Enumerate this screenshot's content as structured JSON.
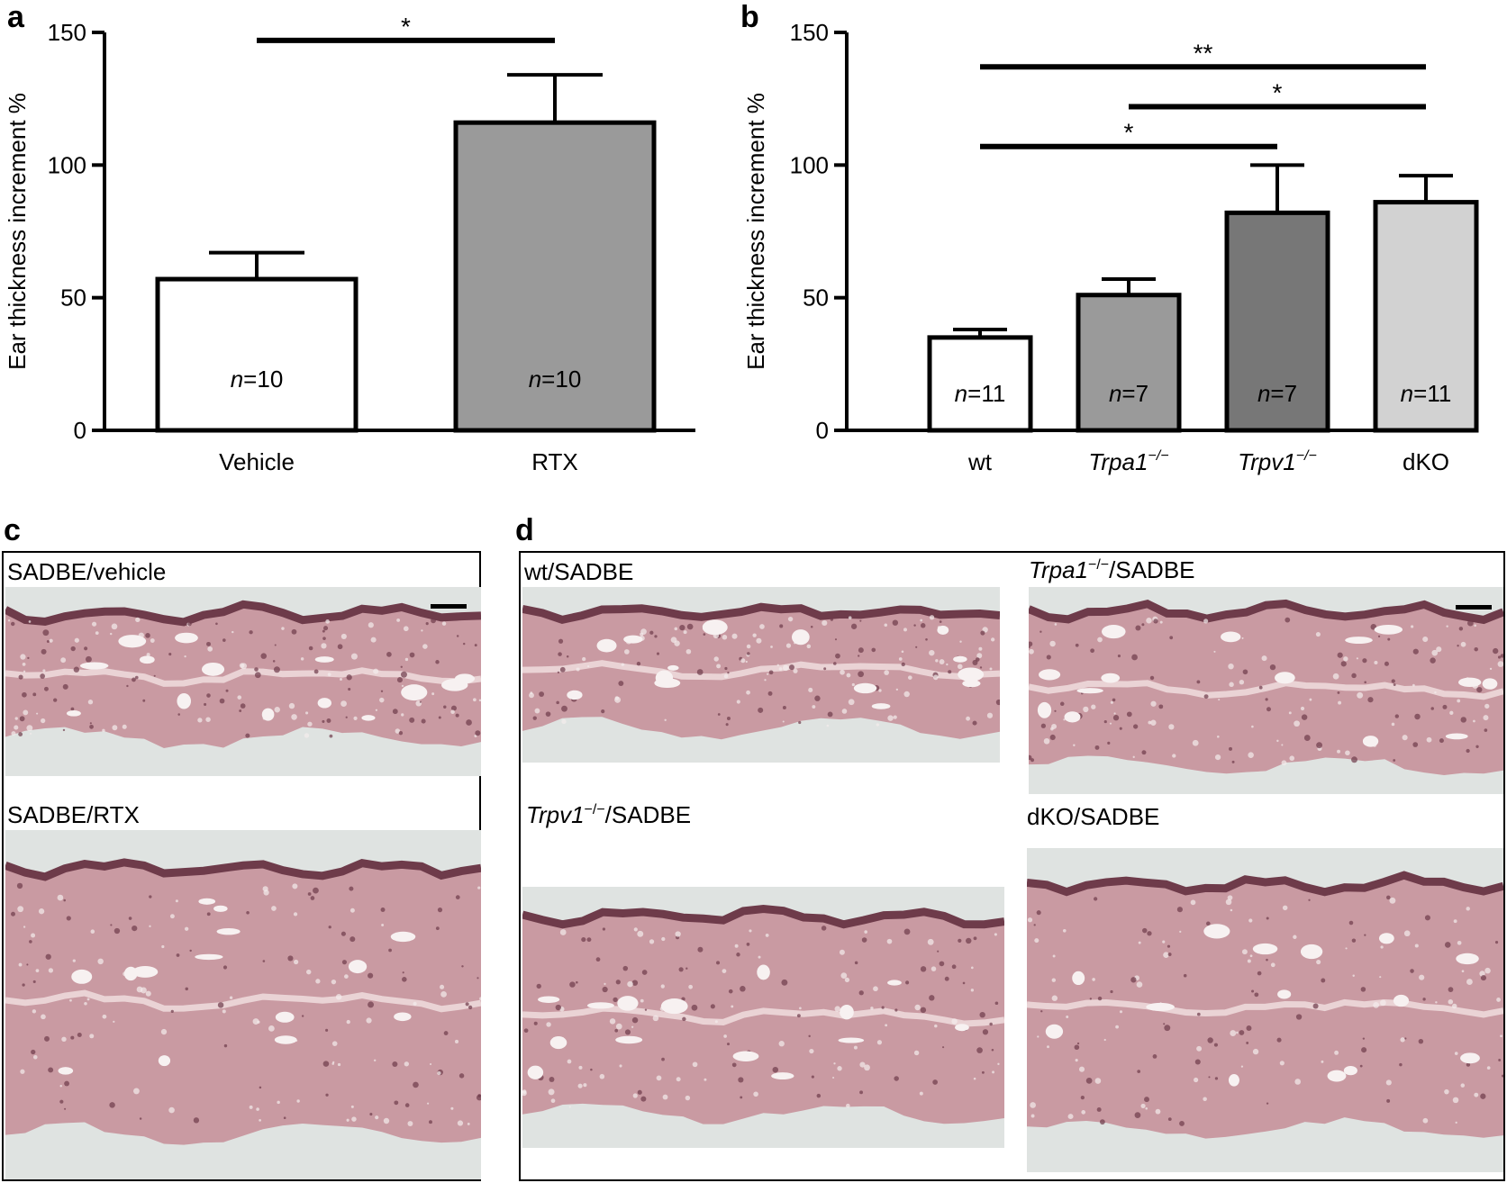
{
  "panels": {
    "a": "a",
    "b": "b",
    "c": "c",
    "d": "d"
  },
  "chart_data": [
    {
      "type": "bar",
      "panel": "a",
      "ylabel": "Ear thickness increment %",
      "ylim": [
        0,
        150
      ],
      "yticks": [
        0,
        50,
        100,
        150
      ],
      "categories": [
        "Vehicle",
        "RTX"
      ],
      "values": [
        57,
        116
      ],
      "errors": [
        10,
        18
      ],
      "n_labels": [
        "10",
        "10"
      ],
      "fills": [
        "#ffffff",
        "#9a9a9a"
      ],
      "significance": [
        {
          "from": 0,
          "to": 1,
          "label": "*",
          "y": 147
        }
      ]
    },
    {
      "type": "bar",
      "panel": "b",
      "ylabel": "Ear thickness increment %",
      "ylim": [
        0,
        150
      ],
      "yticks": [
        0,
        50,
        100,
        150
      ],
      "categories": [
        {
          "name": "wt",
          "italic": false,
          "sup": ""
        },
        {
          "name": "Trpa1",
          "italic": true,
          "sup": "−/−"
        },
        {
          "name": "Trpv1",
          "italic": true,
          "sup": "−/−"
        },
        {
          "name": "dKO",
          "italic": false,
          "sup": ""
        }
      ],
      "values": [
        35,
        51,
        82,
        86
      ],
      "errors": [
        3,
        6,
        18,
        10
      ],
      "n_labels": [
        "11",
        "7",
        "7",
        "11"
      ],
      "fills": [
        "#ffffff",
        "#9a9a9a",
        "#777777",
        "#d2d2d2"
      ],
      "significance": [
        {
          "from": 0,
          "to": 3,
          "label": "**",
          "y": 137
        },
        {
          "from": 1,
          "to": 3,
          "label": "*",
          "y": 122
        },
        {
          "from": 0,
          "to": 2,
          "label": "*",
          "y": 107
        }
      ]
    }
  ],
  "n_prefix": "n",
  "n_eq": "=",
  "histology": {
    "c": {
      "top_label": "SADBE/vehicle",
      "bottom_label": "SADBE/RTX"
    },
    "d": {
      "wt_label": "wt/SADBE",
      "trpa1_gene": "Trpa1",
      "trpa1_sup": "−/−",
      "trpa1_rest": "/SADBE",
      "trpv1_gene": "Trpv1",
      "trpv1_sup": "−/−",
      "trpv1_rest": "/SADBE",
      "dko_label": "dKO/SADBE"
    }
  },
  "colors": {
    "axis": "#000000",
    "tissue_dark": "#6e3b4a",
    "tissue_mid": "#c99aa2",
    "tissue_light": "#ead3d5",
    "slide_bg": "#dfe3e1"
  }
}
